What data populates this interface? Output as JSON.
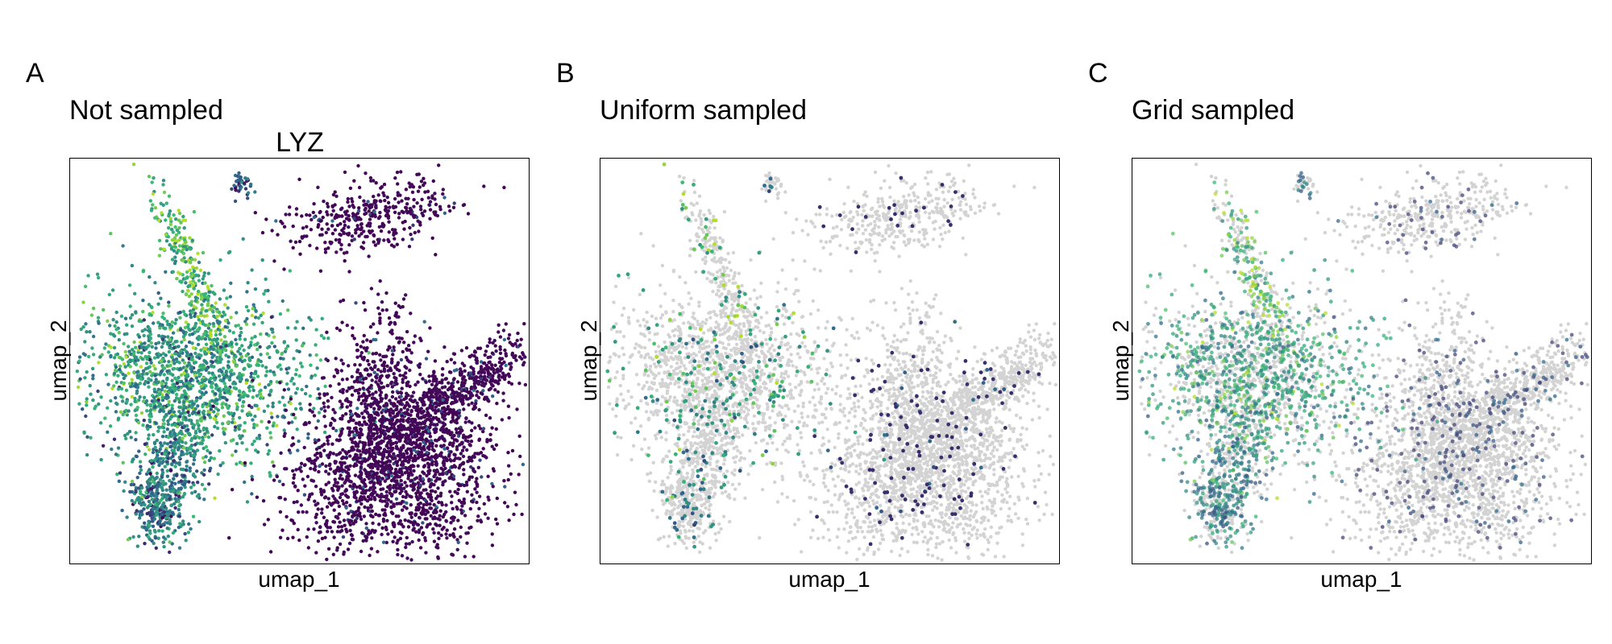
{
  "chart_data": [
    {
      "type": "scatter",
      "panel_label": "A",
      "title": "Not sampled",
      "subtitle": "LYZ",
      "xlabel": "umap_1",
      "ylabel": "umap_2",
      "grid": false,
      "legend": "none",
      "sampling": "none",
      "colors": {
        "low": "#440154",
        "mid": "#31688e",
        "high": "#35b779",
        "top": "#b5de2b",
        "unsampled": "#d3d3d3"
      }
    },
    {
      "type": "scatter",
      "panel_label": "B",
      "title": "Uniform sampled",
      "xlabel": "umap_1",
      "ylabel": "umap_2",
      "grid": false,
      "legend": "none",
      "sampling": "uniform",
      "colors": {
        "low": "#3b2a6b",
        "mid": "#31688e",
        "high": "#35b779",
        "top": "#b5de2b",
        "unsampled": "#d3d3d3"
      }
    },
    {
      "type": "scatter",
      "panel_label": "C",
      "title": "Grid sampled",
      "xlabel": "umap_1",
      "ylabel": "umap_2",
      "grid": false,
      "legend": "none",
      "sampling": "grid",
      "colors": {
        "low": "#46457a",
        "mid": "#31688e",
        "high": "#35b779",
        "top": "#b5de2b",
        "unsampled": "#d3d3d3"
      }
    }
  ]
}
